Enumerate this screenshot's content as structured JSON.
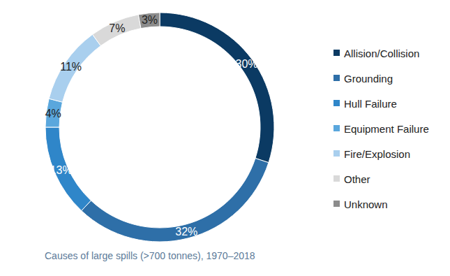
{
  "chart_data": {
    "type": "pie",
    "title": "Causes of large spills (>700 tonnes), 1970–2018",
    "categories": [
      "Allision/Collision",
      "Grounding",
      "Hull Failure",
      "Equipment Failure",
      "Fire/Explosion",
      "Other",
      "Unknown"
    ],
    "values": [
      30,
      32,
      13,
      4,
      11,
      7,
      3
    ],
    "value_labels": [
      "30%",
      "32%",
      "13%",
      "4%",
      "11%",
      "7%",
      "3%"
    ],
    "colors": [
      "#0b3a63",
      "#2e6fa8",
      "#2f86c9",
      "#5aa7dd",
      "#a9cfee",
      "#d9d9d9",
      "#8c8c8c"
    ],
    "data_labels": true,
    "legend": "right"
  }
}
